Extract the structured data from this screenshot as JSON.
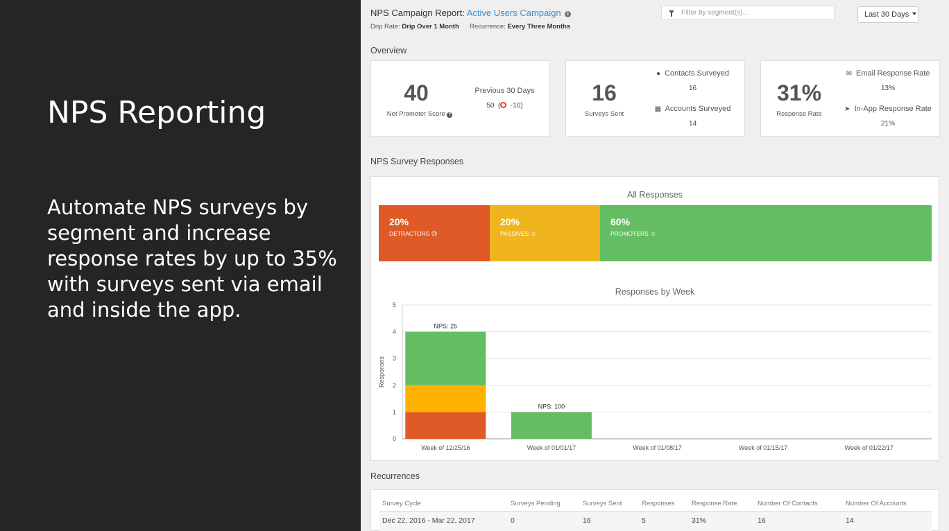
{
  "promo": {
    "title": "NPS Reporting",
    "body": "Automate NPS surveys by segment and increase response rates by up to 35% with surveys sent via email and inside the app."
  },
  "header": {
    "report_label": "NPS Campaign Report:",
    "campaign_name": "Active Users Campaign",
    "drip_label": "Drip Rate:",
    "drip_value": "Drip Over 1 Month",
    "recurrence_label": "Recurrence:",
    "recurrence_value": "Every Three Months",
    "filter_placeholder": "Filter by segment(s)...",
    "date_range": "Last 30 Days"
  },
  "overview": {
    "heading": "Overview",
    "nps": {
      "score": "40",
      "label": "Net Promoter Score",
      "prev_label": "Previous 30 Days",
      "prev_value": "50",
      "prev_change": "-10"
    },
    "surveys": {
      "sent": "16",
      "sent_label": "Surveys Sent",
      "contacts_label": "Contacts Surveyed",
      "contacts_value": "16",
      "accounts_label": "Accounts Surveyed",
      "accounts_value": "14"
    },
    "response": {
      "rate": "31%",
      "rate_label": "Response Rate",
      "email_label": "Email Response Rate",
      "email_value": "13%",
      "inapp_label": "In-App Response Rate",
      "inapp_value": "21%"
    }
  },
  "responses": {
    "heading": "NPS Survey Responses",
    "all_title": "All Responses",
    "detractors": {
      "pct": "20%",
      "label": "DETRACTORS",
      "color": "#e05a28"
    },
    "passives": {
      "pct": "20%",
      "label": "PASSIVES",
      "color": "#f0b41e"
    },
    "promoters": {
      "pct": "60%",
      "label": "PROMOTERS",
      "color": "#64bd63"
    }
  },
  "chart_data": {
    "type": "bar",
    "title": "Responses by Week",
    "ylabel": "Responses",
    "xlabel": "",
    "ylim": [
      0,
      5
    ],
    "yticks": [
      0,
      1,
      2,
      3,
      4,
      5
    ],
    "categories": [
      "Week of 12/25/16",
      "Week of 01/01/17",
      "Week of 01/08/17",
      "Week of 01/15/17",
      "Week of 01/22/17"
    ],
    "stacked": true,
    "series": [
      {
        "values": [
          1,
          0,
          0,
          0,
          0
        ],
        "color": "#e05a28"
      },
      {
        "values": [
          1,
          0,
          0,
          0,
          0
        ],
        "color": "#ffb300"
      },
      {
        "values": [
          2,
          1,
          0,
          0,
          0
        ],
        "color": "#64bd63"
      }
    ],
    "bar_labels": [
      "NPS: 25",
      "NPS: 100",
      "",
      "",
      ""
    ],
    "grid": true
  },
  "recurrences": {
    "heading": "Recurrences",
    "columns": [
      "Survey Cycle",
      "Surveys Pending",
      "Surveys Sent",
      "Responses",
      "Response Rate",
      "Number Of Contacts",
      "Number Of Accounts"
    ],
    "rows": [
      [
        "Dec 22, 2016 - Mar 22, 2017",
        "0",
        "16",
        "5",
        "31%",
        "16",
        "14"
      ]
    ]
  }
}
